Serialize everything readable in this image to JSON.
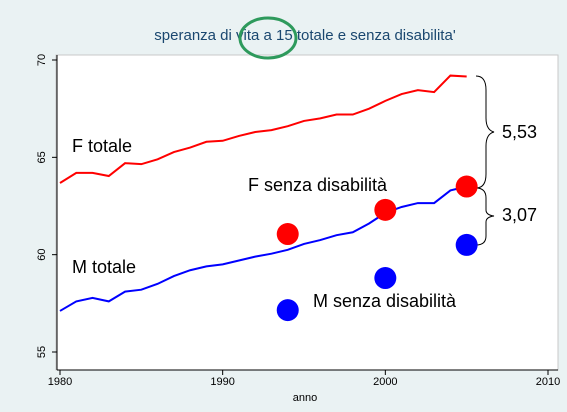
{
  "chart_data": {
    "type": "line",
    "title": "speranza di vita a 15 totale e senza disabilita'",
    "xlabel": "anno",
    "xlim": [
      1980,
      2010
    ],
    "xticks": [
      1980,
      1990,
      2000,
      2010
    ],
    "ylim": [
      55,
      70
    ],
    "yticks": [
      55,
      60,
      65,
      70
    ],
    "series": [
      {
        "name": "F totale",
        "type": "line",
        "color": "#ff0000",
        "x": [
          1980,
          1981,
          1982,
          1983,
          1984,
          1985,
          1986,
          1987,
          1988,
          1989,
          1990,
          1991,
          1992,
          1993,
          1994,
          1995,
          1996,
          1997,
          1998,
          1999,
          2000,
          2001,
          2002,
          2003,
          2004,
          2005
        ],
        "values": [
          63.68,
          64.2,
          64.2,
          64.04,
          64.7,
          64.65,
          64.9,
          65.27,
          65.5,
          65.8,
          65.85,
          66.1,
          66.3,
          66.4,
          66.6,
          66.87,
          67.0,
          67.2,
          67.2,
          67.5,
          67.9,
          68.25,
          68.45,
          68.35,
          69.2,
          69.15
        ]
      },
      {
        "name": "M totale",
        "type": "line",
        "color": "#0000ff",
        "x": [
          1980,
          1981,
          1982,
          1983,
          1984,
          1985,
          1986,
          1987,
          1988,
          1989,
          1990,
          1991,
          1992,
          1993,
          1994,
          1995,
          1996,
          1997,
          1998,
          1999,
          2000,
          2001,
          2002,
          2003,
          2004,
          2005
        ],
        "values": [
          57.11,
          57.6,
          57.78,
          57.6,
          58.1,
          58.2,
          58.5,
          58.9,
          59.2,
          59.4,
          59.5,
          59.7,
          59.9,
          60.05,
          60.25,
          60.55,
          60.75,
          61.0,
          61.15,
          61.6,
          62.15,
          62.45,
          62.65,
          62.65,
          63.3,
          63.5
        ]
      },
      {
        "name": "F senza disabilità",
        "type": "scatter",
        "color": "#ff0000",
        "x": [
          1994,
          2000,
          2005
        ],
        "values": [
          61.06,
          62.3,
          63.5
        ]
      },
      {
        "name": "M senza disabilità",
        "type": "scatter",
        "color": "#0000ff",
        "x": [
          1994,
          2000,
          2005
        ],
        "values": [
          57.15,
          58.8,
          60.5
        ]
      }
    ],
    "annotations": [
      "5,53",
      "3,07"
    ]
  }
}
